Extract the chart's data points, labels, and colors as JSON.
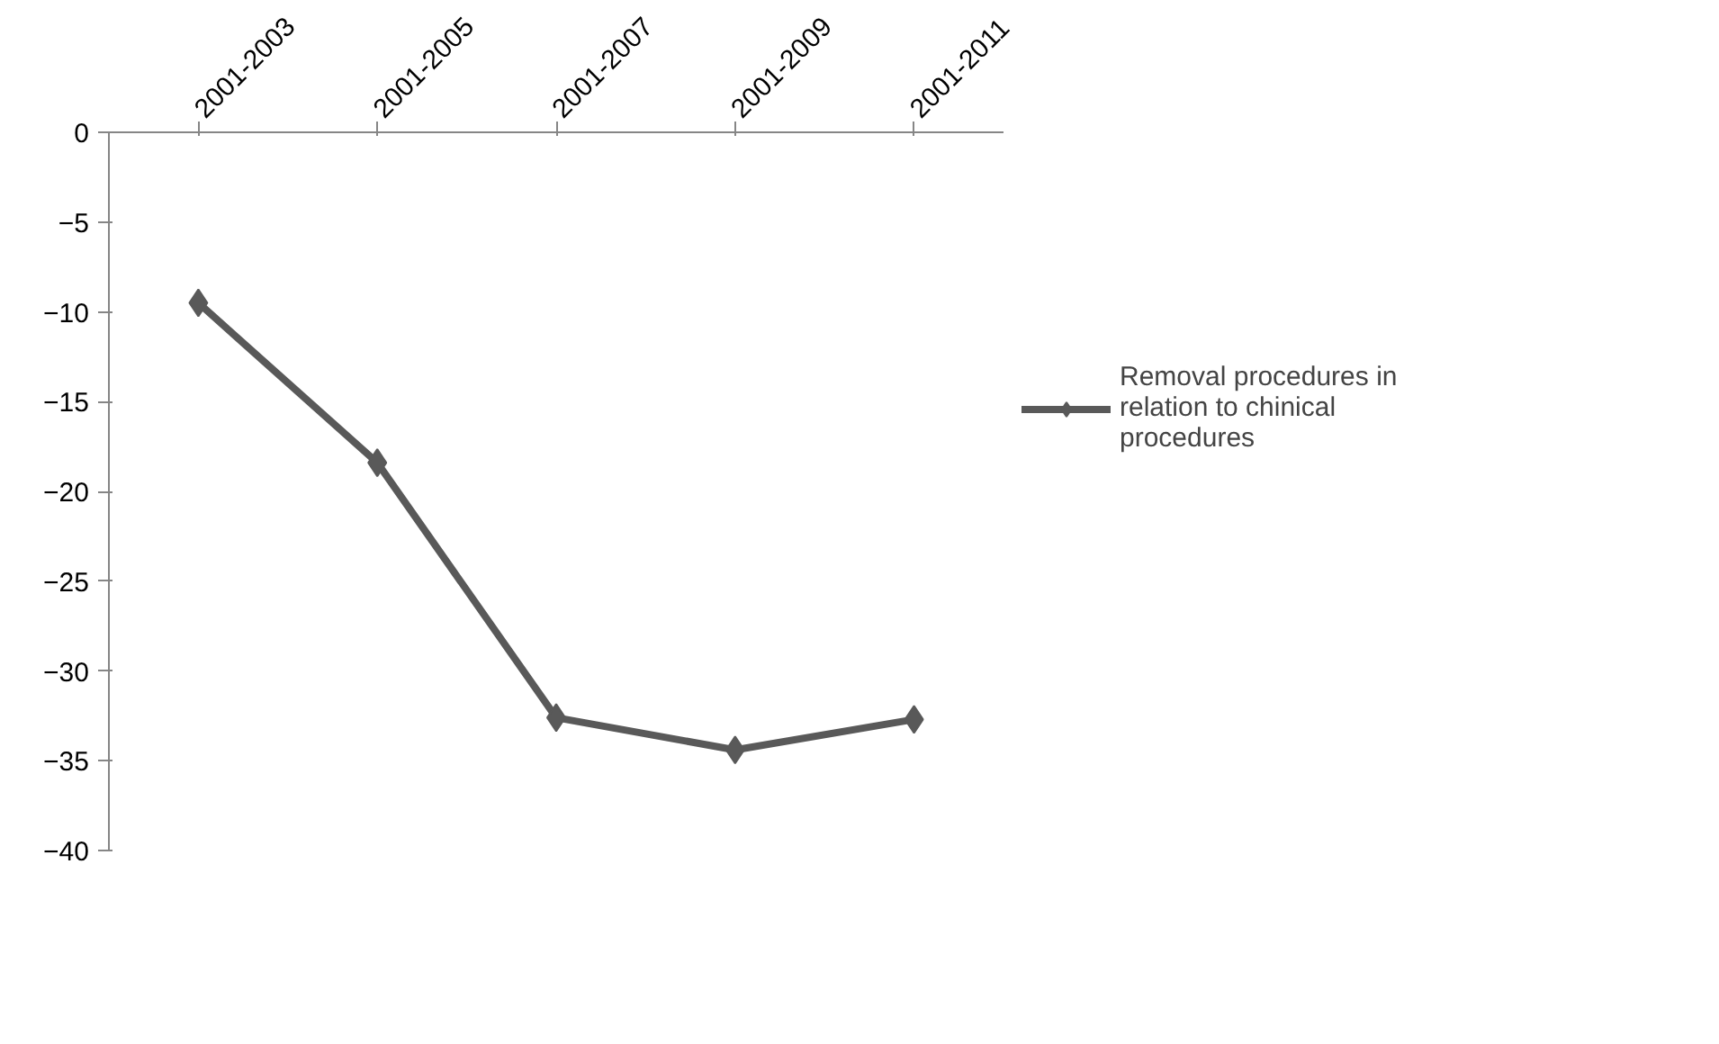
{
  "chart_data": {
    "type": "line",
    "categories": [
      "2001-2003",
      "2001-2005",
      "2001-2007",
      "2001-2009",
      "2001-2011"
    ],
    "series": [
      {
        "name": "Removal procedures in relation to chinical procedures",
        "color": "#595959",
        "values": [
          -9.5,
          -18.4,
          -32.6,
          -34.4,
          -32.7
        ]
      }
    ],
    "ylim": [
      -40,
      0
    ],
    "yticks": [
      -40,
      -35,
      -30,
      -25,
      -20,
      -15,
      -10,
      -5,
      0
    ],
    "grid": false,
    "legend": "right",
    "marker": "diamond",
    "line_style": "solid"
  }
}
